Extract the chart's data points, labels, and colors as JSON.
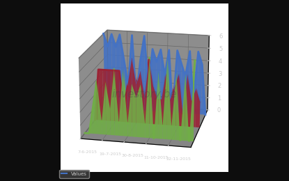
{
  "background_color": "#0d0d0d",
  "pane_back_color": "#1a1a1a",
  "pane_side_color": "#222222",
  "grid_color": "#666666",
  "x_labels": [
    "7-6-2015",
    "19-7-2015",
    "30-8-2015",
    "11-10-2015",
    "22-11-2015"
  ],
  "x_tick_positions": [
    0,
    5,
    10,
    15,
    20
  ],
  "ylim": [
    0,
    6
  ],
  "yticks": [
    0,
    1,
    2,
    3,
    4,
    5,
    6
  ],
  "blue_data": [
    6,
    5,
    6,
    5,
    6,
    4,
    2,
    6,
    1,
    4,
    6,
    2,
    5,
    4,
    5,
    3,
    5,
    0,
    5,
    4,
    3,
    5,
    1,
    5,
    4,
    0
  ],
  "red_data": [
    0,
    4,
    4,
    4,
    4,
    4,
    4,
    1,
    3,
    5,
    3,
    4,
    2,
    5,
    3,
    2,
    2,
    4,
    2,
    3,
    4,
    1,
    4,
    2,
    3,
    2
  ],
  "green_data": [
    0,
    0,
    2,
    4,
    1,
    4,
    2,
    5,
    1,
    5,
    1,
    4,
    3,
    4,
    1,
    6,
    0,
    5,
    1,
    6,
    1,
    5,
    0,
    5,
    0,
    6
  ],
  "blue_color": "#4472c4",
  "red_color": "#9b2335",
  "green_color": "#70ad47",
  "line_width": 2.0,
  "tick_color": "#cccccc",
  "legend_label": "Values",
  "legend_bg": "#3a3a3a",
  "legend_edge": "#888888",
  "elev": 18,
  "azim": -78,
  "y_depth": 2.5
}
